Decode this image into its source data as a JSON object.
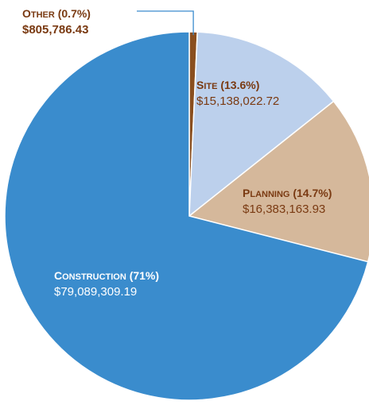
{
  "chart_data": {
    "type": "pie",
    "title": "",
    "slices": [
      {
        "key": "other",
        "label": "Other",
        "percent_label": "(0.7%)",
        "value": 805786.43,
        "value_label": "$805,786.43",
        "percent": 0.7,
        "color": "#8a4f1f",
        "label_color": "#7a3a12"
      },
      {
        "key": "site",
        "label": "Site",
        "percent_label": "(13.6%)",
        "value": 15138022.72,
        "value_label": "$15,138,022.72",
        "percent": 13.6,
        "color": "#bcd0ec",
        "label_color": "#7a3a12"
      },
      {
        "key": "planning",
        "label": "Planning",
        "percent_label": "(14.7%)",
        "value": 16383163.93,
        "value_label": "$16,383,163.93",
        "percent": 14.7,
        "color": "#d5b89b",
        "label_color": "#7a3a12"
      },
      {
        "key": "construction",
        "label": "Construction",
        "percent_label": "(71%)",
        "value": 79089309.19,
        "value_label": "$79,089,309.19",
        "percent": 71.0,
        "color": "#3a8ccd",
        "label_color": "#ffffff"
      }
    ],
    "start_angle_deg": 0,
    "direction": "clockwise",
    "leader_line_color": "#3a8ccd",
    "slice_border_color": "#ffffff"
  }
}
